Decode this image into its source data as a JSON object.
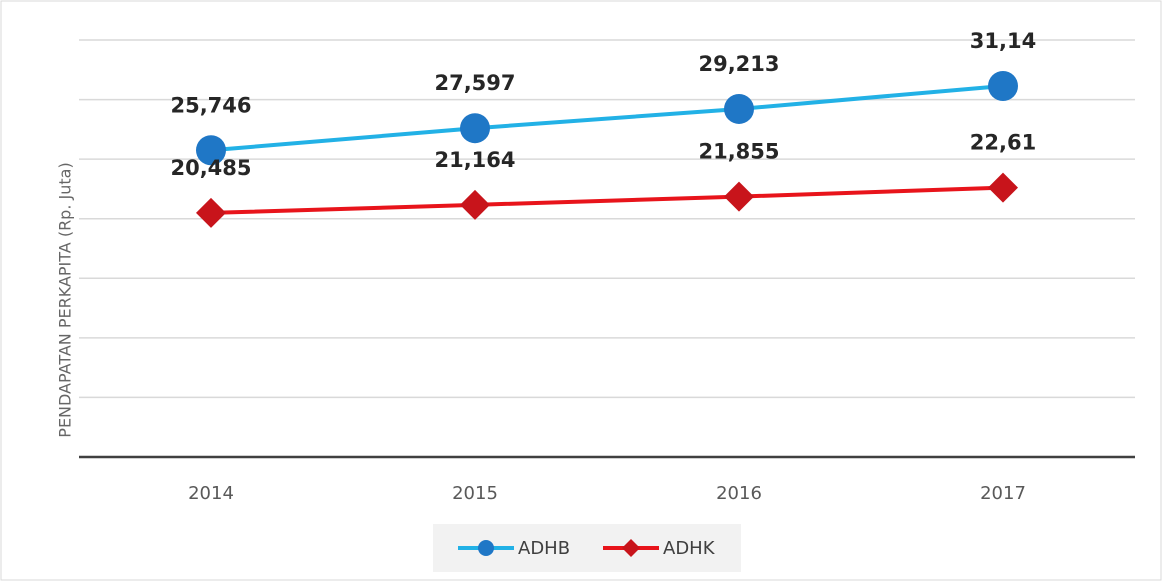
{
  "chart_data": {
    "type": "line",
    "y_axis_label": "PENDAPATAN PERKAPITA (Rp. Juta)",
    "categories": [
      "2014",
      "2015",
      "2016",
      "2017"
    ],
    "series": [
      {
        "name": "ADHB",
        "color": "#22b1e6",
        "marker_color": "#1f77c6",
        "marker": "circle",
        "values": [
          25.746,
          27.597,
          29.213,
          31.14
        ],
        "value_labels": [
          "25,746",
          "27,597",
          "29,213",
          "31,14"
        ]
      },
      {
        "name": "ADHK",
        "color": "#e8141b",
        "marker_color": "#c8141b",
        "marker": "diamond",
        "values": [
          20.485,
          21.164,
          21.855,
          22.61
        ],
        "value_labels": [
          "20,485",
          "21,164",
          "21,855",
          "22,61"
        ]
      }
    ],
    "ylim": [
      0,
      35
    ],
    "yticks": [
      0,
      5,
      10,
      15,
      20,
      25,
      30,
      35
    ],
    "grid": true,
    "legend": "bottom"
  }
}
